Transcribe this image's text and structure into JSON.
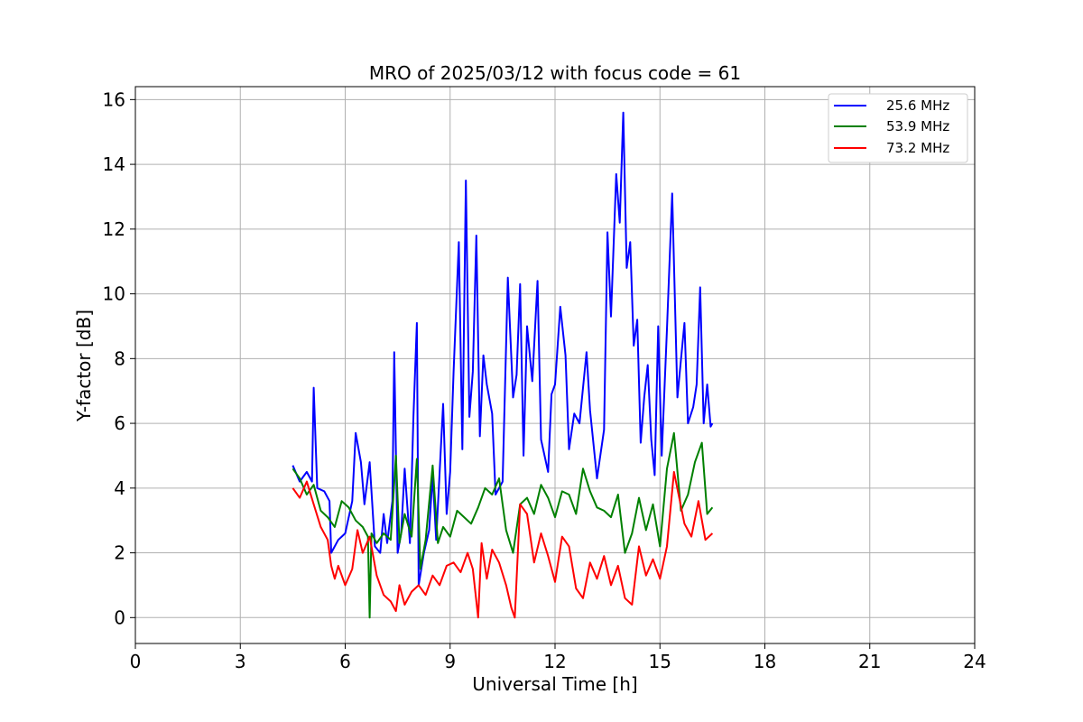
{
  "chart_data": {
    "type": "line",
    "title": "MRO of 2025/03/12 with focus code = 61",
    "xlabel": "Universal Time [h]",
    "ylabel": "Y-factor [dB]",
    "xlim": [
      0,
      24
    ],
    "ylim": [
      -0.8,
      16.4
    ],
    "xticks": [
      0,
      3,
      6,
      9,
      12,
      15,
      18,
      21,
      24
    ],
    "yticks": [
      0,
      2,
      4,
      6,
      8,
      10,
      12,
      14,
      16
    ],
    "grid": true,
    "legend_position": "top-right",
    "series": [
      {
        "name": "25.6 MHz",
        "color": "#0000ff",
        "x": [
          4.5,
          4.7,
          4.9,
          5.05,
          5.1,
          5.2,
          5.4,
          5.55,
          5.6,
          5.8,
          6.0,
          6.2,
          6.3,
          6.45,
          6.55,
          6.7,
          6.85,
          7.0,
          7.1,
          7.2,
          7.35,
          7.4,
          7.5,
          7.6,
          7.7,
          7.85,
          7.95,
          8.05,
          8.1,
          8.25,
          8.4,
          8.5,
          8.6,
          8.8,
          8.9,
          9.0,
          9.1,
          9.25,
          9.35,
          9.45,
          9.55,
          9.65,
          9.75,
          9.85,
          9.95,
          10.05,
          10.2,
          10.3,
          10.5,
          10.65,
          10.8,
          10.9,
          11.0,
          11.1,
          11.2,
          11.35,
          11.5,
          11.6,
          11.8,
          11.9,
          12.0,
          12.15,
          12.3,
          12.4,
          12.55,
          12.7,
          12.9,
          13.0,
          13.2,
          13.4,
          13.5,
          13.6,
          13.75,
          13.85,
          13.95,
          14.05,
          14.15,
          14.25,
          14.35,
          14.45,
          14.55,
          14.65,
          14.75,
          14.85,
          14.95,
          15.05,
          15.2,
          15.35,
          15.5,
          15.55,
          15.7,
          15.8,
          15.95,
          16.05,
          16.15,
          16.25,
          16.35,
          16.45,
          16.5
        ],
        "y": [
          4.7,
          4.2,
          4.5,
          4.2,
          7.1,
          4.0,
          3.9,
          3.6,
          2.0,
          2.4,
          2.6,
          3.6,
          5.7,
          4.8,
          3.5,
          4.8,
          2.2,
          2.0,
          3.2,
          2.3,
          3.6,
          8.2,
          2.0,
          2.6,
          4.6,
          2.3,
          6.2,
          9.1,
          1.0,
          2.0,
          2.7,
          4.4,
          2.4,
          6.6,
          3.2,
          4.5,
          7.6,
          11.6,
          5.2,
          13.5,
          6.2,
          7.6,
          11.8,
          5.6,
          8.1,
          7.2,
          6.3,
          3.8,
          4.2,
          10.5,
          6.8,
          7.5,
          10.3,
          5.0,
          9.0,
          7.3,
          10.4,
          5.5,
          4.5,
          6.9,
          7.2,
          9.6,
          8.1,
          5.2,
          6.3,
          6.0,
          8.2,
          6.4,
          4.3,
          5.8,
          11.9,
          9.3,
          13.7,
          12.2,
          15.6,
          10.8,
          11.6,
          8.4,
          9.2,
          5.4,
          6.8,
          7.8,
          5.5,
          4.4,
          9.0,
          5.0,
          8.9,
          13.1,
          6.8,
          7.4,
          9.1,
          6.0,
          6.5,
          7.2,
          10.2,
          6.0,
          7.2,
          5.9,
          6.0
        ]
      },
      {
        "name": "53.9 MHz",
        "color": "#008000",
        "x": [
          4.5,
          4.7,
          4.9,
          5.1,
          5.3,
          5.5,
          5.7,
          5.9,
          6.1,
          6.3,
          6.5,
          6.65,
          6.7,
          6.75,
          6.9,
          7.1,
          7.3,
          7.45,
          7.55,
          7.7,
          7.9,
          8.05,
          8.15,
          8.3,
          8.5,
          8.65,
          8.8,
          9.0,
          9.2,
          9.4,
          9.6,
          9.8,
          10.0,
          10.2,
          10.4,
          10.6,
          10.8,
          11.0,
          11.2,
          11.4,
          11.6,
          11.8,
          12.0,
          12.2,
          12.4,
          12.6,
          12.8,
          13.0,
          13.2,
          13.4,
          13.6,
          13.8,
          14.0,
          14.2,
          14.4,
          14.6,
          14.8,
          15.0,
          15.2,
          15.4,
          15.6,
          15.8,
          16.0,
          16.2,
          16.35,
          16.5
        ],
        "y": [
          4.6,
          4.3,
          3.8,
          4.1,
          3.3,
          3.1,
          2.8,
          3.6,
          3.4,
          3.0,
          2.8,
          2.5,
          0.0,
          2.6,
          2.3,
          2.6,
          2.4,
          5.0,
          2.3,
          3.2,
          2.5,
          4.9,
          1.5,
          2.4,
          4.7,
          2.3,
          2.8,
          2.5,
          3.3,
          3.1,
          2.9,
          3.4,
          4.0,
          3.8,
          4.3,
          2.7,
          2.0,
          3.5,
          3.7,
          3.2,
          4.1,
          3.7,
          3.1,
          3.9,
          3.8,
          3.2,
          4.6,
          3.9,
          3.4,
          3.3,
          3.1,
          3.8,
          2.0,
          2.6,
          3.7,
          2.7,
          3.5,
          2.2,
          4.6,
          5.7,
          3.3,
          3.8,
          4.8,
          5.4,
          3.2,
          3.4
        ]
      },
      {
        "name": "73.2 MHz",
        "color": "#ff0000",
        "x": [
          4.5,
          4.7,
          4.9,
          5.1,
          5.3,
          5.5,
          5.6,
          5.7,
          5.8,
          6.0,
          6.2,
          6.35,
          6.5,
          6.7,
          6.9,
          7.1,
          7.3,
          7.45,
          7.55,
          7.7,
          7.9,
          8.1,
          8.3,
          8.5,
          8.7,
          8.9,
          9.1,
          9.3,
          9.5,
          9.65,
          9.8,
          9.9,
          10.05,
          10.2,
          10.4,
          10.6,
          10.75,
          10.85,
          11.0,
          11.2,
          11.4,
          11.6,
          11.8,
          12.0,
          12.2,
          12.4,
          12.6,
          12.8,
          13.0,
          13.2,
          13.4,
          13.6,
          13.8,
          14.0,
          14.2,
          14.4,
          14.6,
          14.8,
          15.0,
          15.2,
          15.4,
          15.55,
          15.7,
          15.9,
          16.1,
          16.3,
          16.5
        ],
        "y": [
          4.0,
          3.7,
          4.2,
          3.5,
          2.8,
          2.4,
          1.6,
          1.2,
          1.6,
          1.0,
          1.5,
          2.7,
          2.0,
          2.5,
          1.3,
          0.7,
          0.5,
          0.2,
          1.0,
          0.4,
          0.8,
          1.0,
          0.7,
          1.3,
          1.0,
          1.6,
          1.7,
          1.4,
          2.0,
          1.5,
          0.0,
          2.3,
          1.2,
          2.1,
          1.7,
          1.0,
          0.3,
          0.0,
          3.5,
          3.2,
          1.7,
          2.6,
          1.9,
          1.1,
          2.5,
          2.2,
          0.9,
          0.6,
          1.7,
          1.2,
          1.9,
          1.0,
          1.6,
          0.6,
          0.4,
          2.2,
          1.3,
          1.8,
          1.2,
          2.2,
          4.5,
          3.7,
          2.9,
          2.5,
          3.6,
          2.4,
          2.6
        ]
      }
    ]
  }
}
